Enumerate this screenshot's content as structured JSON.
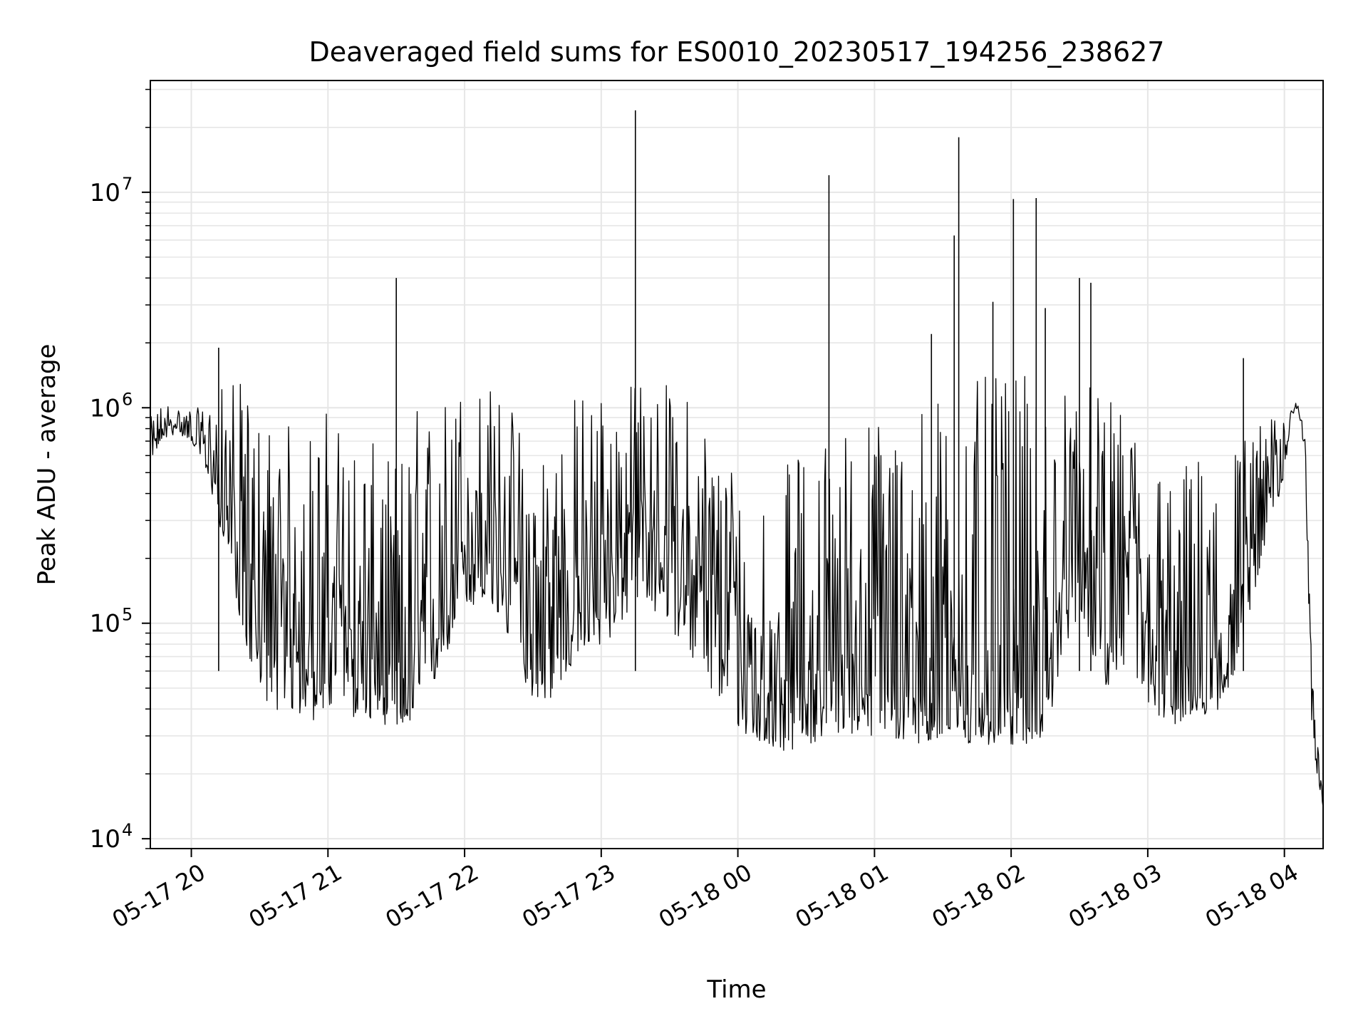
{
  "chart_data": {
    "type": "line",
    "title": "Deaveraged field sums for ES0010_20230517_194256_238627",
    "xlabel": "Time",
    "ylabel": "Peak ADU - average",
    "y_scale": "log",
    "ylim": [
      9000,
      33000000
    ],
    "xlim": [
      "2023-05-17 19:42",
      "2023-05-18 04:17"
    ],
    "grid": true,
    "line_color": "#000000",
    "grid_color": "#e6e6e6",
    "x_ticks": [
      {
        "t": "2023-05-17 20:00",
        "label": "05-17 20"
      },
      {
        "t": "2023-05-17 21:00",
        "label": "05-17 21"
      },
      {
        "t": "2023-05-17 22:00",
        "label": "05-17 22"
      },
      {
        "t": "2023-05-17 23:00",
        "label": "05-17 23"
      },
      {
        "t": "2023-05-18 00:00",
        "label": "05-18 00"
      },
      {
        "t": "2023-05-18 01:00",
        "label": "05-18 01"
      },
      {
        "t": "2023-05-18 02:00",
        "label": "05-18 02"
      },
      {
        "t": "2023-05-18 03:00",
        "label": "05-18 03"
      },
      {
        "t": "2023-05-18 04:00",
        "label": "05-18 04"
      }
    ],
    "y_ticks": [
      {
        "value": 10000,
        "base": "10",
        "exp": "4"
      },
      {
        "value": 100000,
        "base": "10",
        "exp": "5"
      },
      {
        "value": 1000000,
        "base": "10",
        "exp": "6"
      },
      {
        "value": 10000000,
        "base": "10",
        "exp": "7"
      }
    ],
    "series": [
      {
        "x": [
          "2023-05-17 19:42",
          "2023-05-17 19:48",
          "2023-05-17 19:54",
          "2023-05-17 20:00",
          "2023-05-17 20:06",
          "2023-05-17 20:12",
          "2023-05-17 20:18",
          "2023-05-17 20:24",
          "2023-05-17 20:30",
          "2023-05-17 20:36",
          "2023-05-17 20:42",
          "2023-05-17 20:48",
          "2023-05-17 20:54",
          "2023-05-17 21:00",
          "2023-05-17 21:06",
          "2023-05-17 21:12",
          "2023-05-17 21:18",
          "2023-05-17 21:24",
          "2023-05-17 21:30",
          "2023-05-17 21:36",
          "2023-05-17 21:42",
          "2023-05-17 21:48",
          "2023-05-17 21:54",
          "2023-05-17 22:00",
          "2023-05-17 22:06",
          "2023-05-17 22:12",
          "2023-05-17 22:18",
          "2023-05-17 22:24",
          "2023-05-17 22:30",
          "2023-05-17 22:36",
          "2023-05-17 22:42",
          "2023-05-17 22:48",
          "2023-05-17 22:54",
          "2023-05-17 23:00",
          "2023-05-17 23:06",
          "2023-05-17 23:12",
          "2023-05-17 23:18",
          "2023-05-17 23:24",
          "2023-05-17 23:30",
          "2023-05-17 23:36",
          "2023-05-17 23:42",
          "2023-05-17 23:48",
          "2023-05-17 23:54",
          "2023-05-18 00:00",
          "2023-05-18 00:06",
          "2023-05-18 00:12",
          "2023-05-18 00:18",
          "2023-05-18 00:24",
          "2023-05-18 00:30",
          "2023-05-18 00:36",
          "2023-05-18 00:42",
          "2023-05-18 00:48",
          "2023-05-18 00:54",
          "2023-05-18 01:00",
          "2023-05-18 01:06",
          "2023-05-18 01:12",
          "2023-05-18 01:18",
          "2023-05-18 01:24",
          "2023-05-18 01:30",
          "2023-05-18 01:36",
          "2023-05-18 01:42",
          "2023-05-18 01:48",
          "2023-05-18 01:54",
          "2023-05-18 02:00",
          "2023-05-18 02:06",
          "2023-05-18 02:12",
          "2023-05-18 02:18",
          "2023-05-18 02:24",
          "2023-05-18 02:30",
          "2023-05-18 02:36",
          "2023-05-18 02:42",
          "2023-05-18 02:48",
          "2023-05-18 02:54",
          "2023-05-18 03:00",
          "2023-05-18 03:06",
          "2023-05-18 03:12",
          "2023-05-18 03:18",
          "2023-05-18 03:24",
          "2023-05-18 03:30",
          "2023-05-18 03:36",
          "2023-05-18 03:42",
          "2023-05-18 03:48",
          "2023-05-18 03:54",
          "2023-05-18 04:00",
          "2023-05-18 04:03",
          "2023-05-18 04:06",
          "2023-05-18 04:09",
          "2023-05-18 04:12",
          "2023-05-18 04:15",
          "2023-05-18 04:17"
        ],
        "y": [
          620000,
          800000,
          850000,
          780000,
          650000,
          450000,
          300000,
          150000,
          110000,
          90000,
          80000,
          120000,
          70000,
          95000,
          110000,
          85000,
          70000,
          60000,
          55000,
          50000,
          65000,
          110000,
          160000,
          230000,
          260000,
          240000,
          200000,
          130000,
          95000,
          85000,
          110000,
          150000,
          170000,
          180000,
          210000,
          260000,
          300000,
          280000,
          240000,
          200000,
          150000,
          120000,
          100000,
          75000,
          60000,
          55000,
          52000,
          55000,
          58000,
          62000,
          68000,
          70000,
          72000,
          70000,
          68000,
          66000,
          64000,
          62000,
          60000,
          58000,
          57000,
          56000,
          55000,
          54000,
          55000,
          58000,
          80000,
          160000,
          250000,
          170000,
          120000,
          150000,
          180000,
          75000,
          55000,
          50000,
          55000,
          60000,
          65000,
          90000,
          140000,
          260000,
          420000,
          580000,
          950000,
          1050000,
          700000,
          45000,
          22000,
          14000
        ],
        "y_low": [
          580000,
          720000,
          760000,
          700000,
          520000,
          300000,
          160000,
          75000,
          48000,
          40000,
          38000,
          36000,
          35000,
          38000,
          40000,
          36000,
          35000,
          34000,
          33000,
          32000,
          40000,
          55000,
          80000,
          110000,
          120000,
          110000,
          90000,
          60000,
          45000,
          42000,
          50000,
          65000,
          70000,
          75000,
          90000,
          110000,
          120000,
          110000,
          95000,
          80000,
          60000,
          48000,
          40000,
          32000,
          28000,
          26000,
          25000,
          26000,
          27000,
          28000,
          30000,
          31000,
          30000,
          29000,
          28000,
          27000,
          28000,
          27000,
          26000,
          27000,
          26000,
          27000,
          26000,
          27000,
          27000,
          28000,
          38000,
          80000,
          110000,
          70000,
          50000,
          65000,
          55000,
          40000,
          35000,
          34000,
          35000,
          36000,
          38000,
          50000,
          80000,
          160000,
          300000,
          450000,
          900000,
          1000000,
          600000,
          30000,
          18000,
          13500
        ],
        "y_high": [
          900000,
          1100000,
          1000000,
          1000000,
          1000000,
          1200000,
          1500000,
          1200000,
          1000000,
          900000,
          850000,
          1000000,
          800000,
          1100000,
          900000,
          800000,
          700000,
          650000,
          600000,
          1000000,
          1200000,
          1100000,
          1300000,
          1500000,
          1400000,
          1300000,
          1200000,
          900000,
          800000,
          900000,
          1000000,
          1200000,
          1300000,
          1400000,
          1200000,
          1300000,
          1500000,
          1400000,
          1300000,
          1200000,
          1100000,
          900000,
          700000,
          600000,
          500000,
          450000,
          500000,
          600000,
          700000,
          800000,
          850000,
          900000,
          950000,
          1000000,
          1050000,
          1100000,
          1150000,
          1200000,
          1250000,
          1300000,
          1350000,
          1400000,
          1400000,
          1450000,
          1400000,
          1350000,
          1300000,
          1300000,
          1350000,
          1250000,
          1100000,
          1000000,
          900000,
          700000,
          600000,
          550000,
          600000,
          650000,
          700000,
          750000,
          800000,
          850000,
          900000,
          1000000,
          1050000,
          1080000,
          800000,
          60000,
          26000,
          16000
        ]
      }
    ],
    "spikes": [
      {
        "t": "2023-05-17 20:12",
        "value": 1900000
      },
      {
        "t": "2023-05-17 21:30",
        "value": 4000000
      },
      {
        "t": "2023-05-17 23:15",
        "value": 24000000
      },
      {
        "t": "2023-05-18 00:40",
        "value": 12000000
      },
      {
        "t": "2023-05-18 01:25",
        "value": 2200000
      },
      {
        "t": "2023-05-18 01:35",
        "value": 6300000
      },
      {
        "t": "2023-05-18 01:37",
        "value": 18000000
      },
      {
        "t": "2023-05-18 01:52",
        "value": 3100000
      },
      {
        "t": "2023-05-18 02:01",
        "value": 9300000
      },
      {
        "t": "2023-05-18 02:11",
        "value": 9400000
      },
      {
        "t": "2023-05-18 02:15",
        "value": 2900000
      },
      {
        "t": "2023-05-18 02:30",
        "value": 4000000
      },
      {
        "t": "2023-05-18 02:35",
        "value": 3800000
      },
      {
        "t": "2023-05-18 03:42",
        "value": 1700000
      }
    ]
  }
}
